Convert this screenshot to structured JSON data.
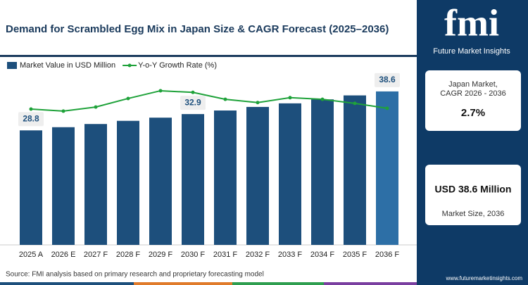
{
  "chart_data": {
    "type": "bar",
    "title": "Demand for Scrambled Egg Mix in Japan Size & CAGR Forecast (2025–2036)",
    "categories": [
      "2025 A",
      "2026 E",
      "2027 F",
      "2028 F",
      "2029 F",
      "2030 F",
      "2031 F",
      "2032 F",
      "2033 F",
      "2034 F",
      "2035 F",
      "2036 F"
    ],
    "series": [
      {
        "name": "Market Value in USD Million",
        "type": "bar",
        "color": "#1d4f7c",
        "colors": [
          "#1d4f7c",
          "#1d4f7c",
          "#1d4f7c",
          "#1d4f7c",
          "#1d4f7c",
          "#1d4f7c",
          "#1d4f7c",
          "#1d4f7c",
          "#1d4f7c",
          "#1d4f7c",
          "#1d4f7c",
          "#2d6fa6"
        ],
        "values": [
          28.8,
          29.6,
          30.4,
          31.2,
          32.0,
          32.9,
          33.8,
          34.7,
          35.6,
          36.6,
          37.6,
          38.6
        ],
        "value_labels": [
          "28.8",
          null,
          null,
          null,
          null,
          "32.9",
          null,
          null,
          null,
          null,
          null,
          "38.6"
        ]
      },
      {
        "name": "Y-o-Y Growth Rate (%)",
        "type": "line",
        "color": "#1fa23a",
        "axis": "y2",
        "values": [
          2.63,
          2.58,
          2.68,
          2.89,
          3.08,
          3.04,
          2.87,
          2.79,
          2.91,
          2.87,
          2.77,
          2.65
        ]
      }
    ],
    "ylim": [
      0,
      40
    ],
    "y2lim": [
      -0.7,
      3.2
    ],
    "source": "Source: FMI analysis based on primary research and proprietary forecasting model"
  },
  "side_panel": {
    "logo": "fmi",
    "brand": "Future Market Insights",
    "card1": {
      "line1": "Japan Market,",
      "line2": "CAGR 2026 - 2036",
      "value": "2.7%"
    },
    "card2": {
      "value": "USD 38.6 Million",
      "label": "Market Size, 2036"
    },
    "website": "www.futuremarketinsights.com"
  }
}
